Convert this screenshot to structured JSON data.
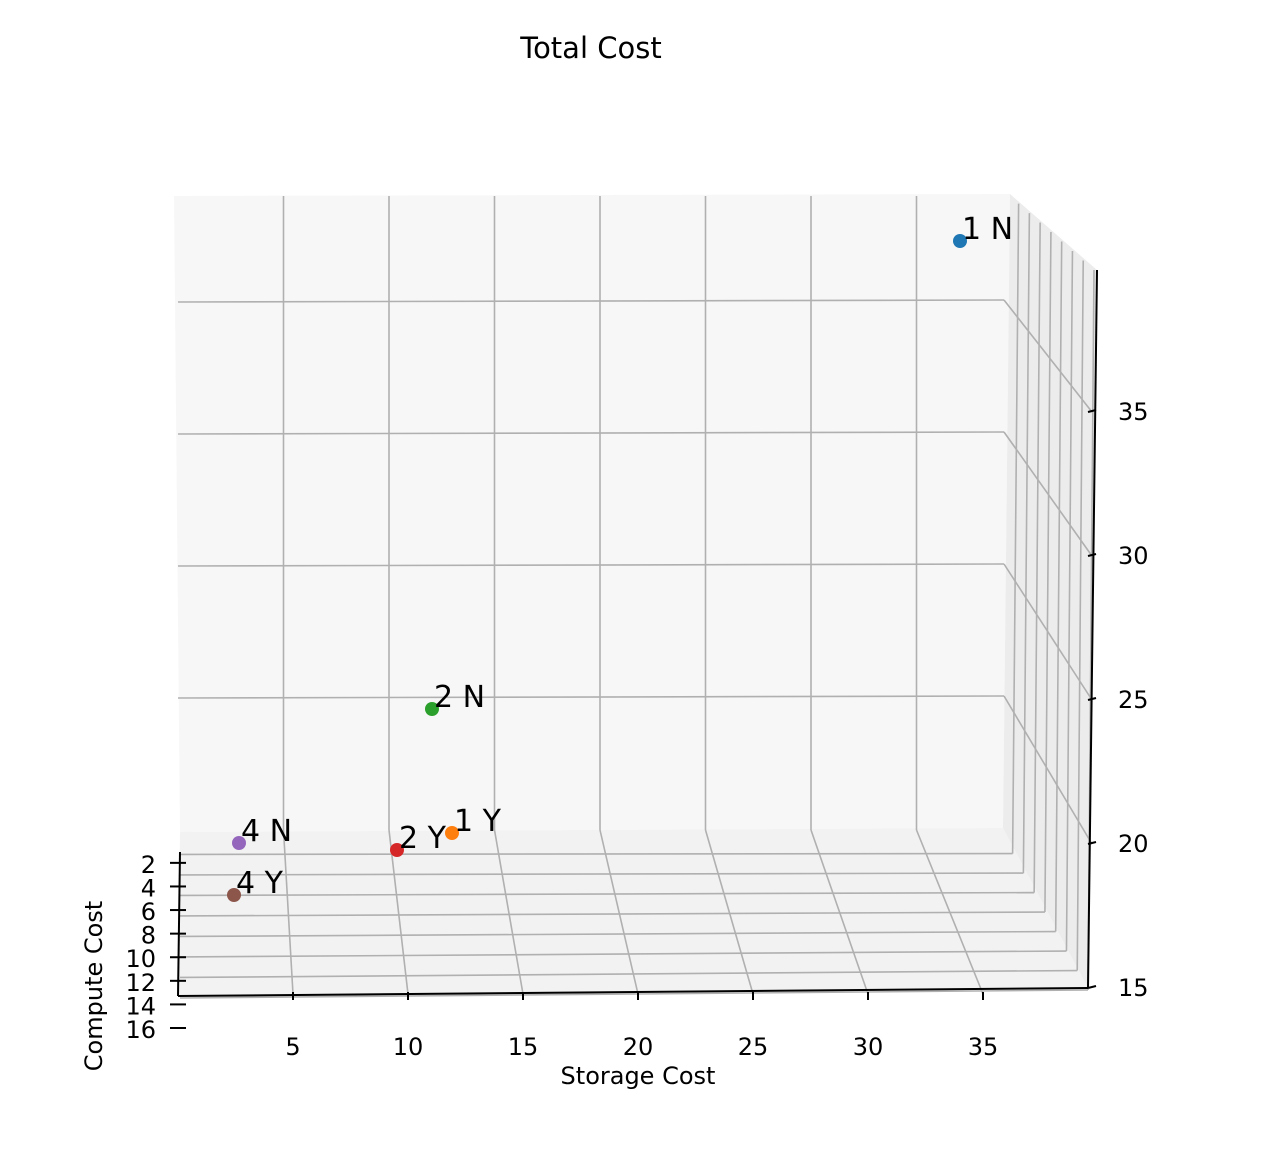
{
  "chart_data": {
    "type": "scatter",
    "title": "Total Cost",
    "xlabel": "Storage Cost",
    "ylabel": "Compute Cost",
    "zlabel": "",
    "grid": true,
    "x_ticks": [
      5,
      10,
      15,
      20,
      25,
      30,
      35
    ],
    "y_ticks": [
      2,
      4,
      6,
      8,
      10,
      12,
      14,
      16
    ],
    "z_ticks": [
      15,
      20,
      25,
      30,
      35
    ],
    "points": [
      {
        "label": "1 N",
        "x": 34,
        "y": 3,
        "z": 39,
        "color": "#1f77b4"
      },
      {
        "label": "1 Y",
        "x": 12,
        "y": 3,
        "z": 20.5,
        "color": "#ff7f0e"
      },
      {
        "label": "2 N",
        "x": 11,
        "y": 3,
        "z": 25,
        "color": "#2ca02c"
      },
      {
        "label": "2 Y",
        "x": 9.5,
        "y": 4,
        "z": 20,
        "color": "#d62728"
      },
      {
        "label": "4 N",
        "x": 2.5,
        "y": 2,
        "z": 20.5,
        "color": "#9467bd"
      },
      {
        "label": "4 Y",
        "x": 2.5,
        "y": 6,
        "z": 18.5,
        "color": "#8c564b"
      }
    ]
  }
}
